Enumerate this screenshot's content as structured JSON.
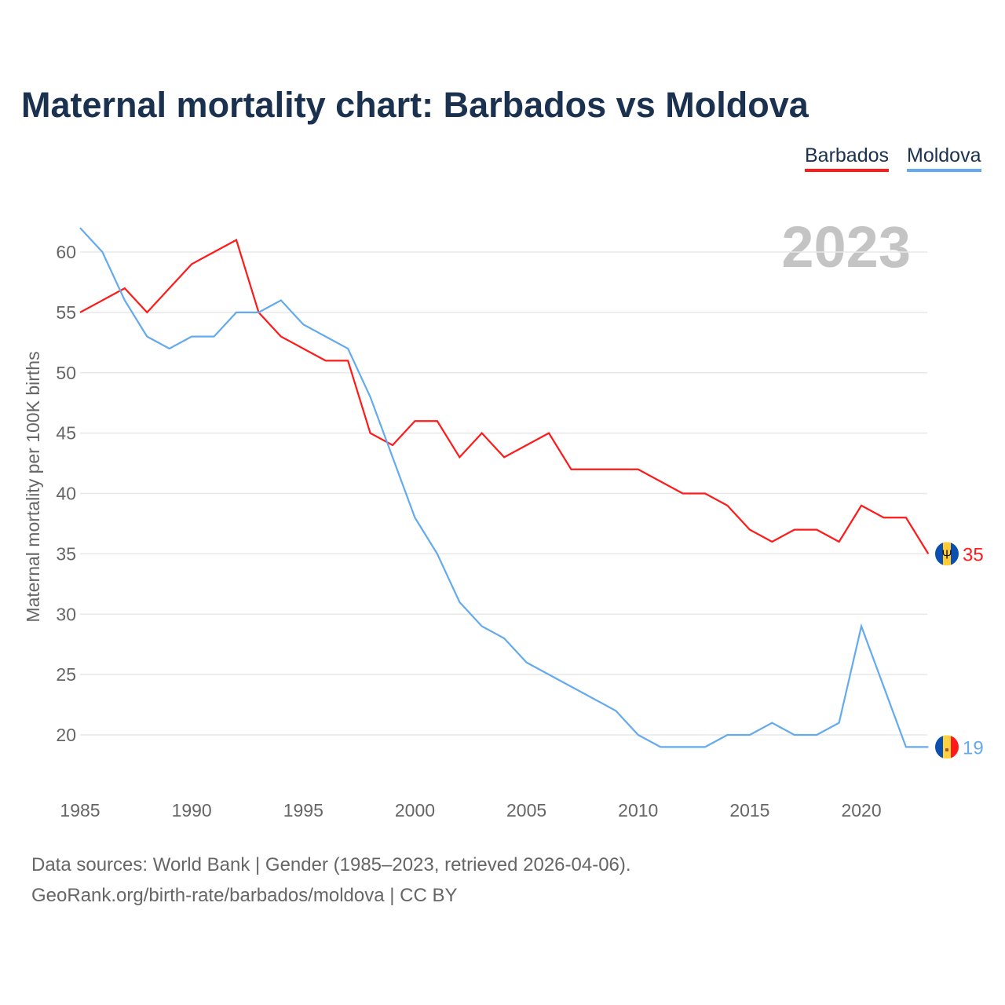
{
  "chart_data": {
    "type": "line",
    "title": "Maternal mortality chart: Barbados vs Moldova",
    "ylabel": "Maternal mortality per 100K births",
    "xlabel": "",
    "year_label": "2023",
    "x": [
      1985,
      1986,
      1987,
      1988,
      1989,
      1990,
      1991,
      1992,
      1993,
      1994,
      1995,
      1996,
      1997,
      1998,
      1999,
      2000,
      2001,
      2002,
      2003,
      2004,
      2005,
      2006,
      2007,
      2008,
      2009,
      2010,
      2011,
      2012,
      2013,
      2014,
      2015,
      2016,
      2017,
      2018,
      2019,
      2020,
      2021,
      2022,
      2023
    ],
    "xticks": [
      1985,
      1990,
      1995,
      2000,
      2005,
      2010,
      2015,
      2020
    ],
    "yticks": [
      20,
      25,
      30,
      35,
      40,
      45,
      50,
      55,
      60
    ],
    "ylim": [
      16,
      63
    ],
    "grid": true,
    "legend_position": "top-right",
    "series": [
      {
        "name": "Barbados",
        "color": "#ff1a1a",
        "end_label": "35",
        "values": [
          55,
          56,
          57,
          55,
          57,
          59,
          60,
          61,
          55,
          53,
          52,
          51,
          51,
          45,
          44,
          46,
          46,
          43,
          45,
          43,
          44,
          45,
          42,
          42,
          42,
          42,
          41,
          40,
          40,
          39,
          37,
          36,
          37,
          37,
          36,
          39,
          38,
          38,
          35
        ]
      },
      {
        "name": "Moldova",
        "color": "#64aaee",
        "end_label": "19",
        "values": [
          62,
          60,
          56,
          53,
          52,
          53,
          53,
          55,
          55,
          56,
          54,
          53,
          52,
          48,
          43,
          38,
          35,
          31,
          29,
          28,
          26,
          25,
          24,
          23,
          22,
          20,
          19,
          19,
          19,
          20,
          20,
          21,
          20,
          20,
          21,
          29,
          24,
          19,
          19
        ]
      }
    ]
  },
  "footer": {
    "source": "Data sources: World Bank | Gender (1985–2023, retrieved 2026-04-06).",
    "credit": "GeoRank.org/birth-rate/barbados/moldova | CC BY"
  }
}
